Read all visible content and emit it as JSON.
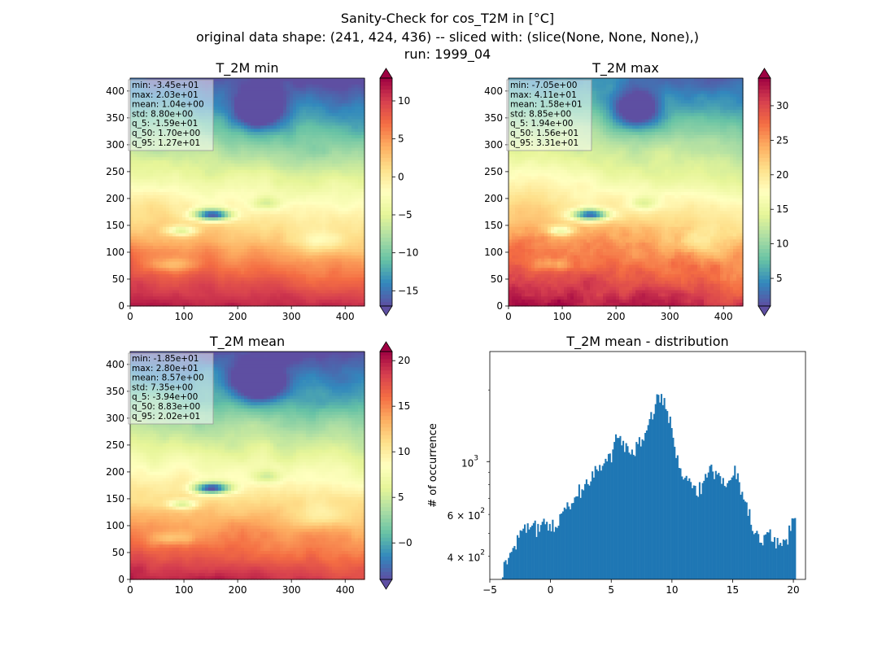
{
  "figure": {
    "title_lines": [
      "Sanity-Check for cos_T2M in [°C]",
      "original data shape: (241, 424, 436) -- sliced with: (slice(None, None, None),)",
      "run: 1999_04"
    ]
  },
  "colors": {
    "colormap": "Spectral_r",
    "histogram_bar": "#1f77b4",
    "stats_box": "#ffffff",
    "background": "#ffffff"
  },
  "chart_data": [
    {
      "type": "heatmap",
      "panel": "min",
      "title": "T_2M min",
      "x_ticks": [
        0,
        100,
        200,
        300,
        400
      ],
      "y_ticks": [
        0,
        50,
        100,
        150,
        200,
        250,
        300,
        350,
        400
      ],
      "xlim": [
        0,
        436
      ],
      "ylim": [
        0,
        424
      ],
      "colorbar": {
        "range": [
          -17,
          13
        ],
        "ticks": [
          -15,
          -10,
          -5,
          0,
          5,
          10
        ],
        "tick_labels": [
          "−15",
          "−10",
          "−5",
          "0",
          "5",
          "10"
        ],
        "extend": "both"
      },
      "stats": [
        "min: -3.45e+01",
        "max: 2.03e+01",
        "mean: 1.04e+00",
        "std: 8.80e+00",
        "q_5: -1.59e+01",
        "q_50: 1.70e+00",
        "q_95: 1.27e+01"
      ]
    },
    {
      "type": "heatmap",
      "panel": "max",
      "title": "T_2M max",
      "x_ticks": [
        0,
        100,
        200,
        300,
        400
      ],
      "y_ticks": [
        0,
        50,
        100,
        150,
        200,
        250,
        300,
        350,
        400
      ],
      "xlim": [
        0,
        436
      ],
      "ylim": [
        0,
        424
      ],
      "colorbar": {
        "range": [
          1,
          34
        ],
        "ticks": [
          5,
          10,
          15,
          20,
          25,
          30
        ],
        "tick_labels": [
          "5",
          "10",
          "15",
          "20",
          "25",
          "30"
        ],
        "extend": "both"
      },
      "stats": [
        "min: -7.05e+00",
        "max: 4.11e+01",
        "mean: 1.58e+01",
        "std: 8.85e+00",
        "q_5: 1.94e+00",
        "q_50: 1.56e+01",
        "q_95: 3.31e+01"
      ]
    },
    {
      "type": "heatmap",
      "panel": "mean",
      "title": "T_2M mean",
      "x_ticks": [
        0,
        100,
        200,
        300,
        400
      ],
      "y_ticks": [
        0,
        50,
        100,
        150,
        200,
        250,
        300,
        350,
        400
      ],
      "xlim": [
        0,
        436
      ],
      "ylim": [
        0,
        424
      ],
      "colorbar": {
        "range": [
          -4,
          21
        ],
        "ticks": [
          0,
          5,
          10,
          15,
          20
        ],
        "tick_labels": [
          "−0",
          "5",
          "10",
          "15",
          "20"
        ],
        "extend": "both"
      },
      "stats": [
        "min: -1.85e+01",
        "max: 2.80e+01",
        "mean: 8.57e+00",
        "std: 7.35e+00",
        "q_5: -3.94e+00",
        "q_50: 8.83e+00",
        "q_95: 2.02e+01"
      ]
    },
    {
      "type": "bar",
      "panel": "distribution",
      "title": "T_2M mean - distribution",
      "ylabel": "# of occurrence",
      "xlabel": "",
      "yscale": "log",
      "xlim": [
        -5,
        21
      ],
      "ylim": [
        320,
        2900
      ],
      "x_ticks": [
        -5,
        0,
        5,
        10,
        15,
        20
      ],
      "x_tick_labels": [
        "−5",
        "0",
        "5",
        "10",
        "15",
        "20"
      ],
      "y_ticks_major": [
        {
          "value": 1000,
          "base": "10",
          "exp": "3"
        }
      ],
      "y_ticks_minor": [
        {
          "value": 400,
          "coef": "4 × ",
          "base": "10",
          "exp": "2"
        },
        {
          "value": 600,
          "coef": "6 × ",
          "base": "10",
          "exp": "2"
        }
      ],
      "bin_range": [
        -4,
        20.2
      ],
      "anchors": [
        [
          -4.0,
          340
        ],
        [
          -3.6,
          390
        ],
        [
          -3.0,
          420
        ],
        [
          -2.5,
          500
        ],
        [
          -2.0,
          540
        ],
        [
          -1.5,
          520
        ],
        [
          -1.0,
          530
        ],
        [
          -0.5,
          560
        ],
        [
          0.0,
          520
        ],
        [
          0.5,
          540
        ],
        [
          1.0,
          620
        ],
        [
          1.5,
          640
        ],
        [
          2.0,
          700
        ],
        [
          2.5,
          760
        ],
        [
          3.0,
          800
        ],
        [
          3.5,
          880
        ],
        [
          4.0,
          900
        ],
        [
          4.5,
          980
        ],
        [
          5.0,
          1050
        ],
        [
          5.3,
          1300
        ],
        [
          5.6,
          1250
        ],
        [
          6.0,
          1180
        ],
        [
          6.5,
          1100
        ],
        [
          7.0,
          1140
        ],
        [
          7.5,
          1250
        ],
        [
          8.0,
          1450
        ],
        [
          8.5,
          1650
        ],
        [
          8.9,
          2000
        ],
        [
          9.2,
          1800
        ],
        [
          9.5,
          1700
        ],
        [
          9.8,
          1500
        ],
        [
          10.2,
          1150
        ],
        [
          10.6,
          950
        ],
        [
          11.0,
          880
        ],
        [
          11.5,
          800
        ],
        [
          12.0,
          760
        ],
        [
          12.4,
          800
        ],
        [
          12.8,
          860
        ],
        [
          13.2,
          920
        ],
        [
          13.7,
          900
        ],
        [
          14.2,
          870
        ],
        [
          14.7,
          820
        ],
        [
          15.1,
          920
        ],
        [
          15.5,
          820
        ],
        [
          16.0,
          700
        ],
        [
          16.5,
          550
        ],
        [
          17.0,
          500
        ],
        [
          17.5,
          460
        ],
        [
          18.0,
          520
        ],
        [
          18.5,
          470
        ],
        [
          19.0,
          450
        ],
        [
          19.5,
          480
        ],
        [
          19.8,
          540
        ],
        [
          20.1,
          580
        ]
      ]
    }
  ]
}
